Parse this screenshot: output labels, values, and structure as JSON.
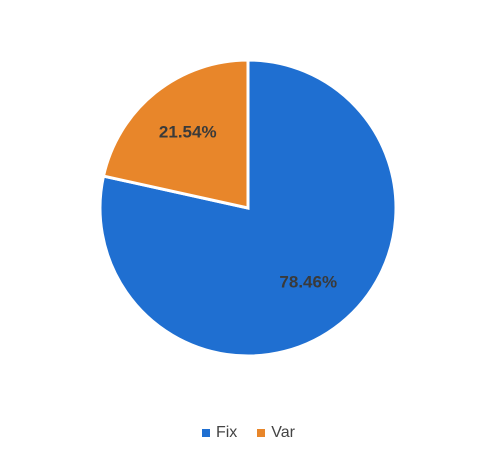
{
  "chart_data": {
    "type": "pie",
    "categories": [
      "Fix",
      "Var"
    ],
    "values": [
      78.46,
      21.54
    ],
    "data_labels": [
      "78.46%",
      "21.54%"
    ],
    "colors": [
      "#1f6fd1",
      "#e8862a"
    ],
    "start_angle_deg": 0,
    "direction": "clockwise",
    "legend": "bottom",
    "title": ""
  }
}
